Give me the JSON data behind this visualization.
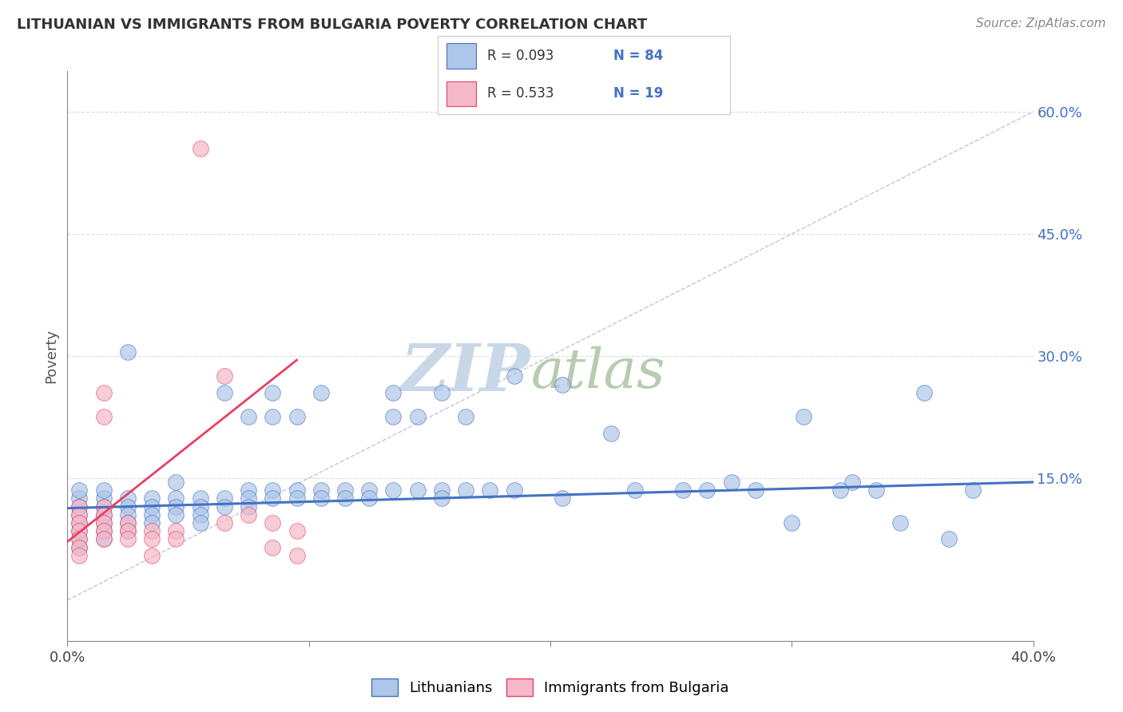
{
  "title": "LITHUANIAN VS IMMIGRANTS FROM BULGARIA POVERTY CORRELATION CHART",
  "source": "Source: ZipAtlas.com",
  "ylabel": "Poverty",
  "y_tick_values": [
    0.6,
    0.45,
    0.3,
    0.15
  ],
  "y_ticks_labels": [
    "60.0%",
    "45.0%",
    "30.0%",
    "15.0%"
  ],
  "x_range": [
    0.0,
    0.4
  ],
  "y_range": [
    -0.05,
    0.65
  ],
  "blue_color": "#4472c4",
  "pink_color": "#e84060",
  "blue_fill": "#aec6e8",
  "pink_fill": "#f4b8c8",
  "blue_scatter": [
    [
      0.005,
      0.125
    ],
    [
      0.005,
      0.115
    ],
    [
      0.005,
      0.105
    ],
    [
      0.005,
      0.095
    ],
    [
      0.005,
      0.135
    ],
    [
      0.005,
      0.085
    ],
    [
      0.005,
      0.075
    ],
    [
      0.005,
      0.065
    ],
    [
      0.015,
      0.125
    ],
    [
      0.015,
      0.115
    ],
    [
      0.015,
      0.105
    ],
    [
      0.015,
      0.095
    ],
    [
      0.015,
      0.085
    ],
    [
      0.015,
      0.135
    ],
    [
      0.015,
      0.075
    ],
    [
      0.025,
      0.305
    ],
    [
      0.025,
      0.125
    ],
    [
      0.025,
      0.115
    ],
    [
      0.025,
      0.105
    ],
    [
      0.025,
      0.095
    ],
    [
      0.025,
      0.085
    ],
    [
      0.035,
      0.125
    ],
    [
      0.035,
      0.115
    ],
    [
      0.035,
      0.105
    ],
    [
      0.035,
      0.095
    ],
    [
      0.045,
      0.125
    ],
    [
      0.045,
      0.115
    ],
    [
      0.045,
      0.105
    ],
    [
      0.045,
      0.145
    ],
    [
      0.055,
      0.125
    ],
    [
      0.055,
      0.115
    ],
    [
      0.055,
      0.105
    ],
    [
      0.055,
      0.095
    ],
    [
      0.065,
      0.255
    ],
    [
      0.065,
      0.125
    ],
    [
      0.065,
      0.115
    ],
    [
      0.075,
      0.225
    ],
    [
      0.075,
      0.135
    ],
    [
      0.075,
      0.125
    ],
    [
      0.075,
      0.115
    ],
    [
      0.085,
      0.255
    ],
    [
      0.085,
      0.225
    ],
    [
      0.085,
      0.135
    ],
    [
      0.085,
      0.125
    ],
    [
      0.095,
      0.225
    ],
    [
      0.095,
      0.135
    ],
    [
      0.095,
      0.125
    ],
    [
      0.105,
      0.255
    ],
    [
      0.105,
      0.135
    ],
    [
      0.105,
      0.125
    ],
    [
      0.115,
      0.135
    ],
    [
      0.115,
      0.125
    ],
    [
      0.125,
      0.135
    ],
    [
      0.125,
      0.125
    ],
    [
      0.135,
      0.255
    ],
    [
      0.135,
      0.225
    ],
    [
      0.135,
      0.135
    ],
    [
      0.145,
      0.225
    ],
    [
      0.145,
      0.135
    ],
    [
      0.155,
      0.255
    ],
    [
      0.155,
      0.135
    ],
    [
      0.155,
      0.125
    ],
    [
      0.165,
      0.225
    ],
    [
      0.165,
      0.135
    ],
    [
      0.175,
      0.135
    ],
    [
      0.185,
      0.275
    ],
    [
      0.185,
      0.135
    ],
    [
      0.205,
      0.265
    ],
    [
      0.205,
      0.125
    ],
    [
      0.225,
      0.205
    ],
    [
      0.235,
      0.135
    ],
    [
      0.255,
      0.135
    ],
    [
      0.265,
      0.135
    ],
    [
      0.275,
      0.145
    ],
    [
      0.285,
      0.135
    ],
    [
      0.305,
      0.225
    ],
    [
      0.325,
      0.145
    ],
    [
      0.335,
      0.135
    ],
    [
      0.355,
      0.255
    ],
    [
      0.375,
      0.135
    ],
    [
      0.32,
      0.135
    ],
    [
      0.345,
      0.095
    ],
    [
      0.365,
      0.075
    ],
    [
      0.3,
      0.095
    ]
  ],
  "pink_scatter": [
    [
      0.005,
      0.115
    ],
    [
      0.005,
      0.105
    ],
    [
      0.005,
      0.095
    ],
    [
      0.005,
      0.085
    ],
    [
      0.005,
      0.075
    ],
    [
      0.005,
      0.065
    ],
    [
      0.005,
      0.055
    ],
    [
      0.015,
      0.255
    ],
    [
      0.015,
      0.225
    ],
    [
      0.015,
      0.115
    ],
    [
      0.015,
      0.105
    ],
    [
      0.015,
      0.095
    ],
    [
      0.015,
      0.085
    ],
    [
      0.015,
      0.075
    ],
    [
      0.025,
      0.095
    ],
    [
      0.025,
      0.085
    ],
    [
      0.025,
      0.075
    ],
    [
      0.035,
      0.085
    ],
    [
      0.035,
      0.075
    ],
    [
      0.045,
      0.085
    ],
    [
      0.045,
      0.075
    ],
    [
      0.055,
      0.555
    ],
    [
      0.065,
      0.275
    ],
    [
      0.065,
      0.095
    ],
    [
      0.075,
      0.105
    ],
    [
      0.085,
      0.095
    ],
    [
      0.095,
      0.085
    ],
    [
      0.035,
      0.055
    ],
    [
      0.085,
      0.065
    ],
    [
      0.095,
      0.055
    ]
  ],
  "blue_line_x": [
    0.0,
    0.4
  ],
  "blue_line_y": [
    0.113,
    0.145
  ],
  "pink_line_x": [
    -0.005,
    0.095
  ],
  "pink_line_y": [
    0.06,
    0.295
  ],
  "diag_line_x": [
    0.0,
    0.4
  ],
  "diag_line_y": [
    0.0,
    0.6
  ],
  "grid_color": "#d8dce0",
  "bg_color": "#ffffff",
  "watermark_zip_color": "#c8d8e8",
  "watermark_atlas_color": "#b8ccb0",
  "watermark_fontsize": 60,
  "scatter_size": 200,
  "scatter_alpha": 0.7
}
